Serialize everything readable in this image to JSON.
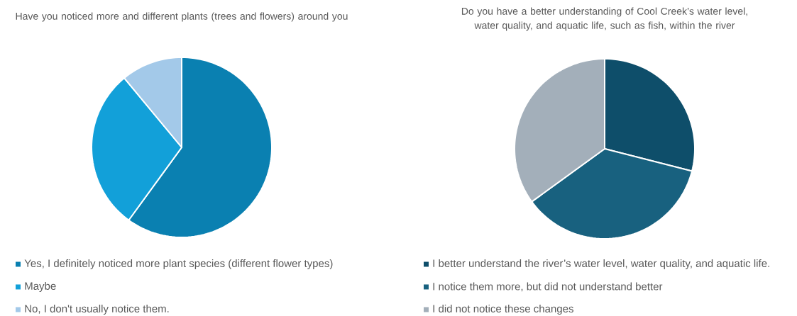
{
  "chart_data": [
    {
      "type": "pie",
      "title": "Have you noticed more and different plants (trees and flowers) around you",
      "categories": [
        "Yes, I definitely noticed more plant species (different flower types)",
        "Maybe",
        "No, I don't usually notice them."
      ],
      "values": [
        60,
        29,
        11
      ],
      "colors": [
        "#0a80b1",
        "#12a0d9",
        "#a3c9e9"
      ],
      "legend": "bottom"
    },
    {
      "type": "pie",
      "title": "Do you have a better understanding of Cool Creek’s water level, water quality, and aquatic life, such as fish, within the river",
      "categories": [
        "I better understand the river’s water level, water quality, and aquatic life.",
        "I notice them more, but did not understand better",
        "I did not notice these changes"
      ],
      "values": [
        29,
        36,
        35
      ],
      "colors": [
        "#0e4e6a",
        "#18617f",
        "#a3afba"
      ],
      "legend": "bottom"
    }
  ]
}
